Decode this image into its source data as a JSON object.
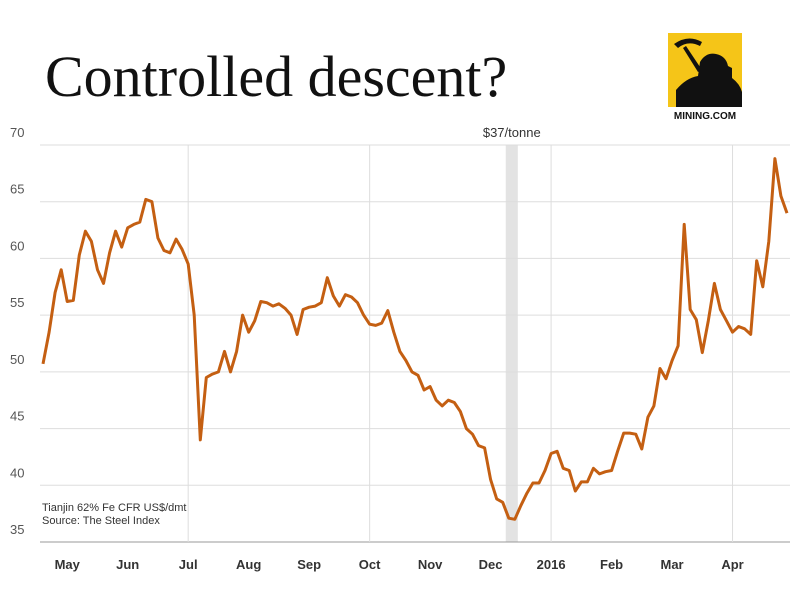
{
  "chart_data": {
    "type": "line",
    "title": "Controlled descent?",
    "logo": "MINING.COM",
    "notes": [
      "Tianjin 62% Fe CFR US$/dmt",
      "Source: The Steel Index"
    ],
    "highlight": {
      "label": "$37/tonne",
      "x_range": [
        72.5,
        74.5
      ]
    },
    "x": [
      -4,
      -3,
      -2,
      -1,
      0,
      1,
      2,
      3,
      4,
      5,
      6,
      7,
      8,
      9,
      10,
      11,
      12,
      13,
      14,
      15,
      16,
      17,
      18,
      19,
      20,
      21,
      22,
      23,
      24,
      25,
      26,
      27,
      28,
      29,
      30,
      31,
      32,
      33,
      34,
      35,
      36,
      37,
      38,
      39,
      40,
      41,
      42,
      43,
      44,
      45,
      46,
      47,
      48,
      49,
      50,
      51,
      52,
      53,
      54,
      55,
      56,
      57,
      58,
      59,
      60,
      61,
      62,
      63,
      64,
      65,
      66,
      67,
      68,
      69,
      70,
      71,
      72,
      73,
      74,
      75,
      76,
      77,
      78,
      79,
      80,
      81,
      82,
      83,
      84,
      85,
      86,
      87,
      88,
      89,
      90,
      91,
      92,
      93,
      94,
      95,
      96,
      97,
      98,
      99,
      100,
      101,
      102,
      103,
      104,
      105,
      106,
      107,
      108,
      109,
      110,
      111,
      112,
      113,
      114,
      115,
      116,
      117,
      118,
      119
    ],
    "series": [
      {
        "color": "#c45f12",
        "values": [
          50.7,
          53.5,
          57,
          59,
          56.2,
          56.3,
          60.3,
          62.4,
          61.5,
          59,
          57.8,
          60.5,
          62.4,
          61,
          62.7,
          63,
          63.2,
          65.2,
          65,
          61.8,
          60.7,
          60.5,
          61.7,
          60.8,
          59.5,
          55,
          44,
          49.5,
          49.8,
          50,
          51.8,
          50,
          51.8,
          55,
          53.5,
          54.5,
          56.2,
          56.1,
          55.8,
          56,
          55.6,
          55,
          53.3,
          55.5,
          55.7,
          55.8,
          56.1,
          58.3,
          56.7,
          55.8,
          56.8,
          56.6,
          56.1,
          55,
          54.2,
          54.1,
          54.3,
          55.4,
          53.5,
          51.8,
          51,
          50,
          49.7,
          48.4,
          48.7,
          47.5,
          47,
          47.5,
          47.3,
          46.5,
          45,
          44.5,
          43.5,
          43.3,
          40.5,
          38.8,
          38.5,
          37.1,
          37,
          38.2,
          39.3,
          40.2,
          40.2,
          41.3,
          42.8,
          43,
          41.5,
          41.3,
          39.5,
          40.3,
          40.3,
          41.5,
          41,
          41.2,
          41.3,
          43,
          44.6,
          44.6,
          44.5,
          43.2,
          46,
          47,
          50.3,
          49.4,
          51,
          52.3,
          63,
          55.5,
          54.6,
          51.7,
          54.5,
          57.8,
          55.5,
          54.5,
          53.5,
          54,
          53.8,
          53.3,
          59.8,
          57.5,
          61.5,
          68.8,
          65.5,
          64
        ]
      }
    ],
    "xlim": [
      -4.5,
      119.5
    ],
    "xticks": [
      {
        "value": 0,
        "label": "May"
      },
      {
        "value": 10,
        "label": "Jun"
      },
      {
        "value": 20,
        "label": "Jul"
      },
      {
        "value": 30,
        "label": "Aug"
      },
      {
        "value": 40,
        "label": "Sep"
      },
      {
        "value": 50,
        "label": "Oct"
      },
      {
        "value": 60,
        "label": "Nov"
      },
      {
        "value": 70,
        "label": "Dec"
      },
      {
        "value": 80,
        "label": "2016"
      },
      {
        "value": 90,
        "label": "Feb"
      },
      {
        "value": 100,
        "label": "Mar"
      },
      {
        "value": 110,
        "label": "Apr"
      }
    ],
    "xgrid": [
      20,
      50,
      80,
      110
    ],
    "ylim": [
      35,
      70
    ],
    "yticks": [
      35,
      40,
      45,
      50,
      55,
      60,
      65,
      70
    ],
    "grid": true
  }
}
